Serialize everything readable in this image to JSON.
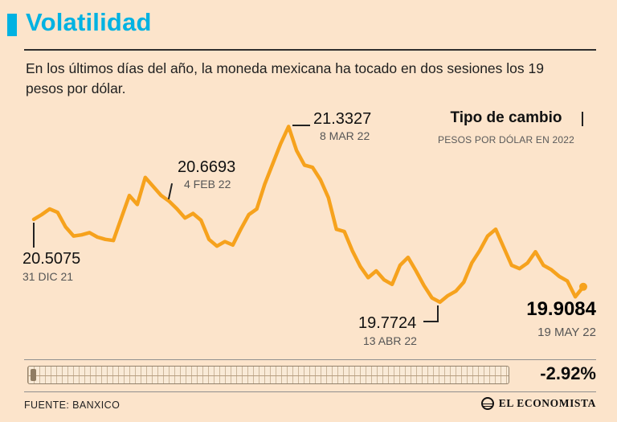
{
  "header": {
    "title": "Volatilidad",
    "subtitle": "En los últimos días del año, la moneda mexicana ha tocado en dos sesiones los 19 pesos por dólar."
  },
  "chart_data": {
    "type": "line",
    "title": "Tipo de cambio",
    "subtitle": "PESOS POR DÓLAR EN 2022",
    "unit": "pesos por dólar",
    "x_range": [
      "31 DIC 21",
      "19 MAY 22"
    ],
    "ylim": [
      19.7,
      21.4
    ],
    "grid": false,
    "legend_position": "top-right",
    "line_color": "#f6a21d",
    "key_points": [
      {
        "date": "31 DIC 21",
        "value": 20.5075
      },
      {
        "date": "4 FEB 22",
        "value": 20.6693
      },
      {
        "date": "8 MAR 22",
        "value": 21.3327
      },
      {
        "date": "13 ABR 22",
        "value": 19.7724
      },
      {
        "date": "19 MAY 22",
        "value": 19.9084
      }
    ],
    "change_pct": -2.92,
    "values": [
      20.5075,
      20.55,
      20.6,
      20.57,
      20.44,
      20.36,
      20.37,
      20.39,
      20.35,
      20.33,
      20.32,
      20.52,
      20.72,
      20.64,
      20.88,
      20.8,
      20.72,
      20.6693,
      20.6,
      20.52,
      20.56,
      20.5,
      20.33,
      20.27,
      20.31,
      20.28,
      20.42,
      20.55,
      20.6,
      20.82,
      21.0,
      21.18,
      21.3327,
      21.12,
      20.99,
      20.97,
      20.86,
      20.7,
      20.42,
      20.4,
      20.23,
      20.09,
      19.99,
      20.05,
      19.97,
      19.93,
      20.1,
      20.17,
      20.05,
      19.92,
      19.81,
      19.7724,
      19.83,
      19.87,
      19.95,
      20.12,
      20.23,
      20.36,
      20.42,
      20.26,
      20.1,
      20.07,
      20.12,
      20.22,
      20.1,
      20.06,
      20.0,
      19.96,
      19.82,
      19.9084
    ]
  },
  "summary": {
    "change_label": "-2.92%"
  },
  "footer": {
    "source": "FUENTE: BANXICO",
    "brand": "EL ECONOMISTA"
  },
  "colors": {
    "accent": "#00b2e2",
    "line": "#f6a21d",
    "background": "#fce4cb"
  }
}
